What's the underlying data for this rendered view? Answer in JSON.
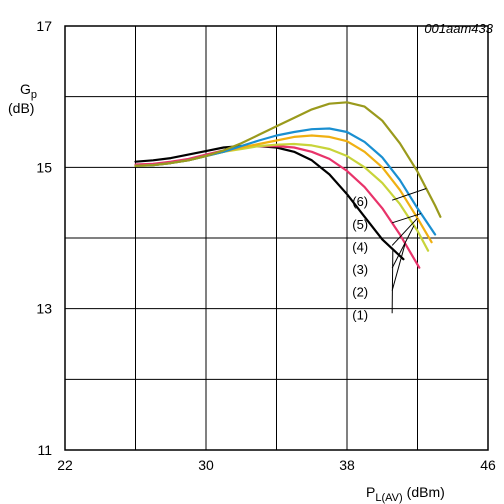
{
  "chart_data": {
    "type": "line",
    "figure_code": "001aam433",
    "ylabel_main": "G",
    "ylabel_sub": "p",
    "ylabel_unit": "(dB)",
    "xlabel_main": "P",
    "xlabel_sub": "L(AV)",
    "xlabel_unit": "(dBm)",
    "xlim": [
      22,
      46
    ],
    "ylim": [
      11,
      17
    ],
    "xticks": [
      22,
      30,
      38,
      46
    ],
    "yticks": [
      11,
      13,
      15,
      17
    ],
    "grid_x": [
      22,
      26,
      30,
      34,
      38,
      42,
      46
    ],
    "grid_y": [
      11,
      12,
      13,
      14,
      15,
      16,
      17
    ],
    "grid": true,
    "series": [
      {
        "name": "(1)",
        "color": "#000000",
        "x": [
          26,
          27,
          28,
          29,
          30,
          31,
          32,
          33,
          34,
          35,
          36,
          37,
          38,
          39,
          40,
          41.2
        ],
        "y": [
          15.08,
          15.1,
          15.13,
          15.18,
          15.23,
          15.28,
          15.3,
          15.3,
          15.28,
          15.22,
          15.1,
          14.9,
          14.62,
          14.3,
          13.98,
          13.7
        ]
      },
      {
        "name": "(2)",
        "color": "#e8336a",
        "x": [
          26,
          27,
          28,
          29,
          30,
          31,
          32,
          33,
          34,
          35,
          36,
          37,
          38,
          39,
          40,
          41,
          42.1
        ],
        "y": [
          15.04,
          15.05,
          15.08,
          15.12,
          15.18,
          15.24,
          15.28,
          15.3,
          15.3,
          15.28,
          15.22,
          15.12,
          14.95,
          14.72,
          14.42,
          14.05,
          13.58
        ]
      },
      {
        "name": "(3)",
        "color": "#c8d43a",
        "x": [
          26,
          27,
          28,
          29,
          30,
          31,
          32,
          33,
          34,
          35,
          36,
          37,
          38,
          39,
          40,
          41,
          42,
          42.6
        ],
        "y": [
          15.02,
          15.03,
          15.06,
          15.1,
          15.16,
          15.22,
          15.26,
          15.3,
          15.32,
          15.33,
          15.31,
          15.26,
          15.16,
          15.0,
          14.78,
          14.48,
          14.1,
          13.82
        ]
      },
      {
        "name": "(4)",
        "color": "#f0b012",
        "x": [
          26,
          27,
          28,
          29,
          30,
          31,
          32,
          33,
          34,
          35,
          36,
          37,
          38,
          39,
          40,
          41,
          42,
          42.8
        ],
        "y": [
          15.02,
          15.03,
          15.06,
          15.1,
          15.16,
          15.22,
          15.28,
          15.33,
          15.38,
          15.43,
          15.45,
          15.43,
          15.37,
          15.22,
          15.0,
          14.68,
          14.28,
          13.94
        ]
      },
      {
        "name": "(5)",
        "color": "#1a8fd1",
        "x": [
          26,
          27,
          28,
          29,
          30,
          31,
          32,
          33,
          34,
          35,
          36,
          37,
          38,
          39,
          40,
          41,
          42,
          43
        ],
        "y": [
          15.02,
          15.03,
          15.06,
          15.1,
          15.16,
          15.22,
          15.3,
          15.38,
          15.45,
          15.5,
          15.54,
          15.55,
          15.5,
          15.36,
          15.14,
          14.82,
          14.42,
          14.05
        ]
      },
      {
        "name": "(6)",
        "color": "#9a9a1c",
        "x": [
          26,
          27,
          28,
          29,
          30,
          31,
          32,
          33,
          34,
          35,
          36,
          37,
          38,
          39,
          40,
          41,
          42,
          43,
          43.3
        ],
        "y": [
          15.02,
          15.03,
          15.06,
          15.1,
          15.16,
          15.24,
          15.34,
          15.46,
          15.58,
          15.7,
          15.82,
          15.9,
          15.92,
          15.86,
          15.66,
          15.34,
          14.94,
          14.46,
          14.3
        ]
      }
    ],
    "curve_labels": [
      {
        "text": "(6)",
        "x": 39.2,
        "y": 14.45
      },
      {
        "text": "(5)",
        "x": 39.2,
        "y": 14.13
      },
      {
        "text": "(4)",
        "x": 39.2,
        "y": 13.81
      },
      {
        "text": "(3)",
        "x": 39.2,
        "y": 13.49
      },
      {
        "text": "(2)",
        "x": 39.2,
        "y": 13.17
      },
      {
        "text": "(1)",
        "x": 39.2,
        "y": 12.85
      }
    ]
  }
}
